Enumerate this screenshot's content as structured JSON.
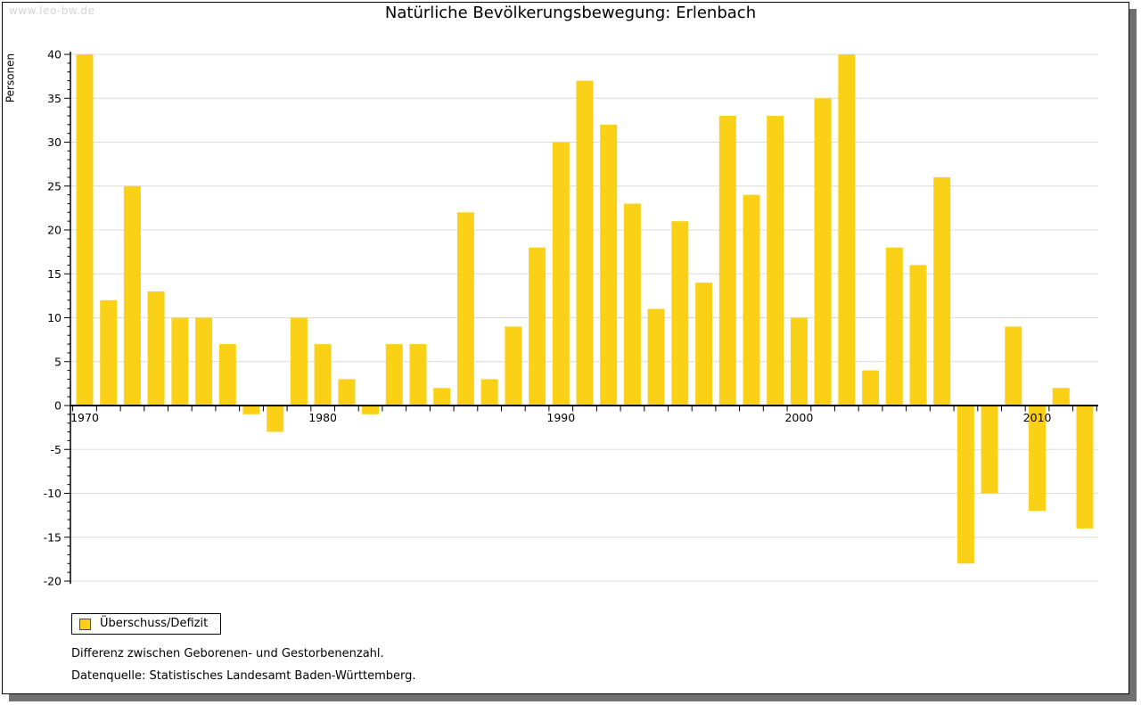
{
  "watermark": "www.leo-bw.de",
  "title": "Natürliche Bevölkerungsbewegung: Erlenbach",
  "legend": {
    "label": "Überschuss/Defizit"
  },
  "notes": {
    "line1": "Differenz zwischen Geborenen- und Gestorbenenzahl.",
    "line2": "Datenquelle: Statistisches Landesamt Baden-Württemberg."
  },
  "colors": {
    "bar": "#fbd118",
    "grid": "#dcdcdc",
    "axis": "#000000",
    "watermark": "#d5d5d5",
    "frame_shadow": "#707070"
  },
  "chart_data": {
    "type": "bar",
    "title": "Natürliche Bevölkerungsbewegung: Erlenbach",
    "xlabel": "",
    "ylabel": "Personen",
    "series_name": "Überschuss/Defizit",
    "x": [
      1970,
      1971,
      1972,
      1973,
      1974,
      1975,
      1976,
      1977,
      1978,
      1979,
      1980,
      1981,
      1982,
      1983,
      1984,
      1985,
      1986,
      1987,
      1988,
      1989,
      1990,
      1991,
      1992,
      1993,
      1994,
      1995,
      1996,
      1997,
      1998,
      1999,
      2000,
      2001,
      2002,
      2003,
      2004,
      2005,
      2006,
      2007,
      2008,
      2009,
      2010,
      2011,
      2012
    ],
    "values": [
      40,
      12,
      25,
      13,
      10,
      10,
      7,
      -1,
      -3,
      10,
      7,
      3,
      -1,
      7,
      7,
      2,
      22,
      3,
      9,
      18,
      30,
      37,
      32,
      23,
      11,
      21,
      14,
      33,
      24,
      33,
      10,
      35,
      40,
      4,
      18,
      16,
      26,
      -18,
      -10,
      9,
      -12,
      2,
      -14
    ],
    "ylim": [
      -20,
      40
    ],
    "ytick_step": 5,
    "ytick_minor_step": 1,
    "xticks_labeled": [
      1970,
      1980,
      1990,
      2000,
      2010
    ],
    "grid": "horizontal",
    "legend_position": "bottom-left"
  }
}
